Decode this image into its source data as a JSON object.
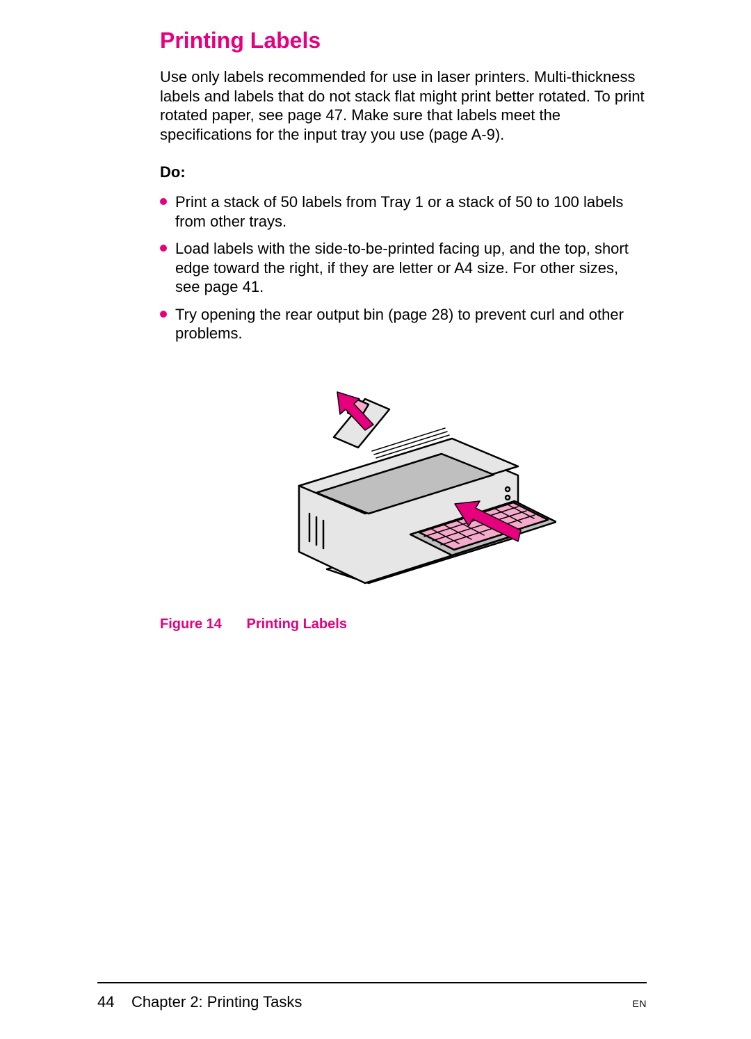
{
  "colors": {
    "accent": "#e6007e",
    "text": "#000000",
    "bg": "#ffffff",
    "printer_body_fill": "#e6e6e6",
    "printer_dark_fill": "#bfbfbf",
    "printer_stroke": "#000000",
    "label_sheet_fill": "#f6aacb"
  },
  "title": "Printing Labels",
  "intro": "Use only labels recommended for use in laser printers. Multi-thickness labels and labels that do not stack flat might print better rotated. To print rotated paper, see page 47. Make sure that labels meet the specifications for the input tray you use (page A-9).",
  "do_heading": "Do:",
  "do_items": [
    "Print a stack of 50 labels from Tray 1 or a stack of 50 to 100 labels from other trays.",
    "Load labels with the side-to-be-printed facing up, and the top, short edge toward the right, if they are letter or A4 size. For other sizes, see page 41.",
    "Try opening the rear output bin (page 28) to prevent curl and other problems."
  ],
  "figure": {
    "number_label": "Figure 14",
    "title": "Printing Labels"
  },
  "footer": {
    "page_number": "44",
    "chapter": "Chapter 2:  Printing Tasks",
    "lang": "EN"
  },
  "typography": {
    "title_fontsize_pt": 24,
    "body_fontsize_pt": 16,
    "caption_fontsize_pt": 15,
    "footer_fontsize_pt": 16
  }
}
